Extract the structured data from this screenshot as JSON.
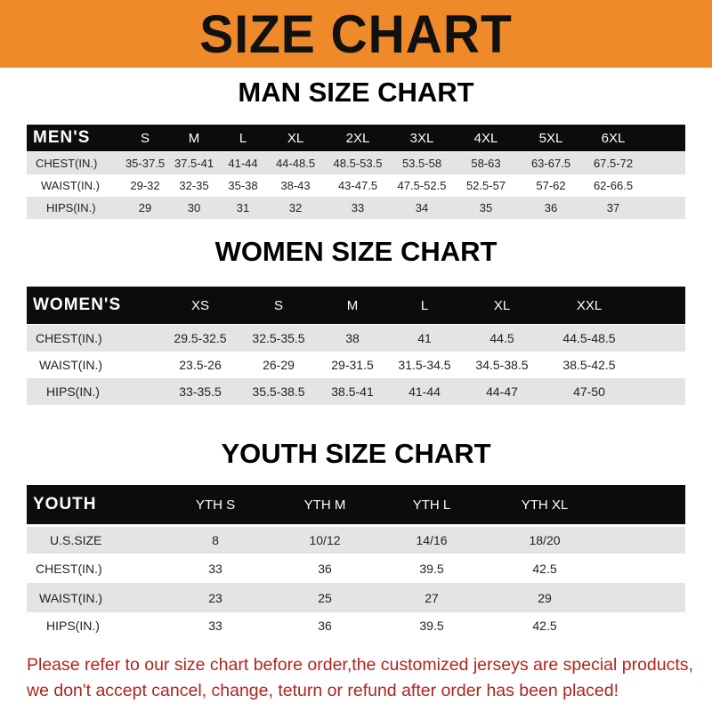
{
  "banner_title": "SIZE CHART",
  "men": {
    "title": "MAN SIZE CHART",
    "header_label": "MEN'S",
    "sizes": [
      "S",
      "M",
      "L",
      "XL",
      "2XL",
      "3XL",
      "4XL",
      "5XL",
      "6XL"
    ],
    "rows": [
      {
        "label": "CHEST(IN.)",
        "values": [
          "35-37.5",
          "37.5-41",
          "41-44",
          "44-48.5",
          "48.5-53.5",
          "53.5-58",
          "58-63",
          "63-67.5",
          "67.5-72"
        ]
      },
      {
        "label": "WAIST(IN.)",
        "values": [
          "29-32",
          "32-35",
          "35-38",
          "38-43",
          "43-47.5",
          "47.5-52.5",
          "52.5-57",
          "57-62",
          "62-66.5"
        ]
      },
      {
        "label": "HIPS(IN.)",
        "values": [
          "29",
          "30",
          "31",
          "32",
          "33",
          "34",
          "35",
          "36",
          "37"
        ]
      }
    ]
  },
  "women": {
    "title": "WOMEN SIZE CHART",
    "header_label": "WOMEN'S",
    "sizes": [
      "XS",
      "S",
      "M",
      "L",
      "XL",
      "XXL"
    ],
    "rows": [
      {
        "label": "CHEST(IN.)",
        "values": [
          "29.5-32.5",
          "32.5-35.5",
          "38",
          "41",
          "44.5",
          "44.5-48.5"
        ]
      },
      {
        "label": "WAIST(IN.)",
        "values": [
          "23.5-26",
          "26-29",
          "29-31.5",
          "31.5-34.5",
          "34.5-38.5",
          "38.5-42.5"
        ]
      },
      {
        "label": "HIPS(IN.)",
        "values": [
          "33-35.5",
          "35.5-38.5",
          "38.5-41",
          "41-44",
          "44-47",
          "47-50"
        ]
      }
    ]
  },
  "youth": {
    "title": "YOUTH SIZE CHART",
    "header_label": "YOUTH",
    "sizes": [
      "YTH S",
      "YTH M",
      "YTH L",
      "YTH XL"
    ],
    "rows": [
      {
        "label": "U.S.SIZE",
        "values": [
          "8",
          "10/12",
          "14/16",
          "18/20"
        ]
      },
      {
        "label": "CHEST(IN.)",
        "values": [
          "33",
          "36",
          "39.5",
          "42.5"
        ]
      },
      {
        "label": "WAIST(IN.)",
        "values": [
          "23",
          "25",
          "27",
          "29"
        ]
      },
      {
        "label": "HIPS(IN.)",
        "values": [
          "33",
          "36",
          "39.5",
          "42.5"
        ]
      }
    ]
  },
  "notice": {
    "line1": "Please refer to our size chart before order,the customized jerseys are special products,",
    "line2": "we don't accept cancel, change, teturn or refund after order has been placed!"
  },
  "colors": {
    "banner": "#ef8a2a",
    "header_row": "#0c0c0c",
    "stripe": "#e4e4e4",
    "notice": "#b0241d"
  }
}
